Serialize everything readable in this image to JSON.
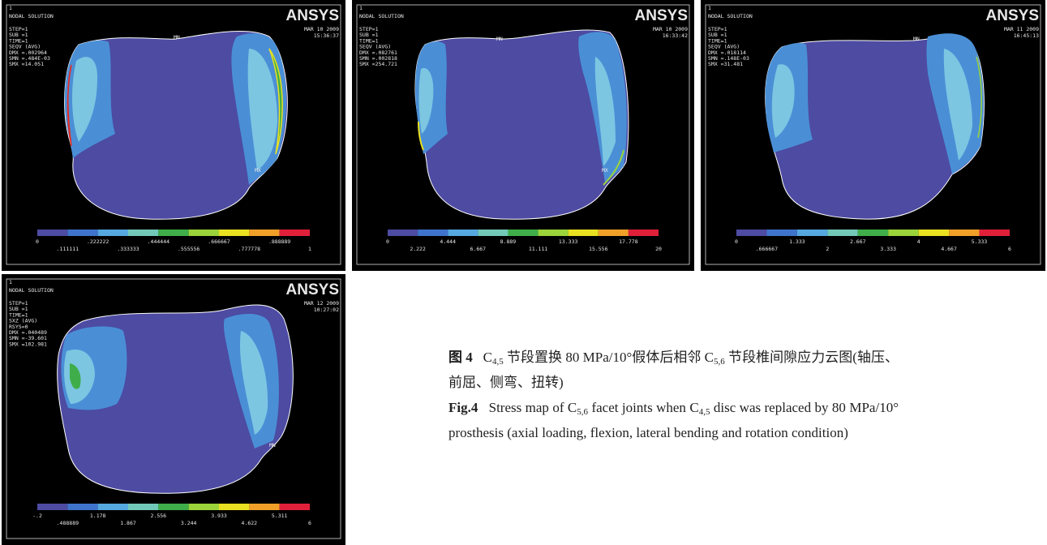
{
  "panels": [
    {
      "index": "1",
      "title": "NODAL SOLUTION",
      "info": [
        "STEP=1",
        "SUB =1",
        "TIME=1",
        "SEQV     (AVG)",
        "DMX =.002964",
        "SMN =.484E-03",
        "SMX =14.051"
      ],
      "date": "MAR 10 2009",
      "time": "15:36:37",
      "logo": "ANSYS",
      "markers": [
        "MN",
        "MX"
      ],
      "legend": {
        "upper": [
          "0",
          ".222222",
          ".444444",
          ".666667",
          ".888889"
        ],
        "lower": [
          ".111111",
          ".333333",
          ".555556",
          ".777778",
          "1"
        ]
      }
    },
    {
      "index": "1",
      "title": "NODAL SOLUTION",
      "info": [
        "STEP=1",
        "SUB =1",
        "TIME=1",
        "SEQV     (AVG)",
        "DMX =.082761",
        "SMN =.002818",
        "SMX =254.721"
      ],
      "date": "MAR 10 2009",
      "time": "16:33:42",
      "logo": "ANSYS",
      "markers": [
        "MN",
        "MX"
      ],
      "legend": {
        "upper": [
          "0",
          "4.444",
          "8.889",
          "13.333",
          "17.778"
        ],
        "lower": [
          "2.222",
          "6.667",
          "11.111",
          "15.556",
          "20"
        ]
      }
    },
    {
      "index": "1",
      "title": "NODAL SOLUTION",
      "info": [
        "STEP=1",
        "SUB =1",
        "TIME=1",
        "SEQV     (AVG)",
        "DMX =.018114",
        "SMN =.148E-03",
        "SMX =31.481"
      ],
      "date": "MAR 11 2009",
      "time": "16:45:13",
      "logo": "ANSYS",
      "markers": [
        "MN"
      ],
      "legend": {
        "upper": [
          "0",
          "1.333",
          "2.667",
          "4",
          "5.333"
        ],
        "lower": [
          ".666667",
          "2",
          "3.333",
          "4.667",
          "6"
        ]
      }
    },
    {
      "index": "1",
      "title": "NODAL SOLUTION",
      "info": [
        "STEP=1",
        "SUB =1",
        "TIME=1",
        "SXZ      (AVG)",
        "RSYS=0",
        "DMX =.040489",
        "SMN =-39.601",
        "SMX =102.981"
      ],
      "date": "MAR 12 2009",
      "time": "10:27:02",
      "logo": "ANSYS",
      "markers": [
        "MN"
      ],
      "legend": {
        "upper": [
          "-.2",
          "1.178",
          "2.556",
          "3.933",
          "5.311"
        ],
        "lower": [
          ".488889",
          "1.867",
          "3.244",
          "4.622",
          "6"
        ]
      }
    }
  ],
  "caption": {
    "zh": {
      "label": "图 4",
      "text": [
        "C",
        "4,5",
        " 节段置换 80 MPa/10°假体后相邻 C",
        "5,6",
        " 节段椎间隙应力云图(轴压、前屈、侧弯、扭转)"
      ]
    },
    "en": {
      "label": "Fig.4",
      "text": [
        "Stress map of C",
        "5,6",
        " facet joints when C",
        "4,5",
        " disc was replaced by 80 MPa/10° prosthesis (axial loading, flexion, lateral bending and rotation condition)"
      ]
    }
  }
}
